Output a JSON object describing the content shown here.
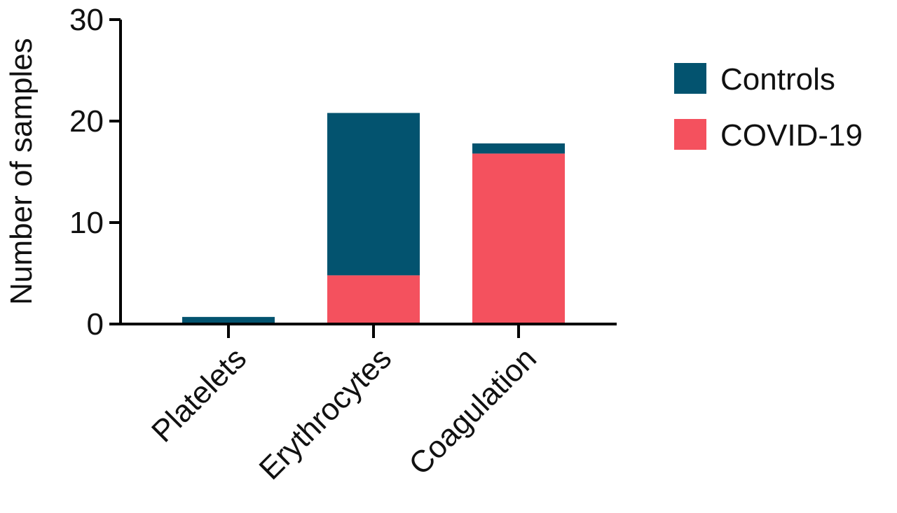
{
  "chart_data": {
    "type": "bar",
    "stacked": true,
    "title": "",
    "xlabel": "",
    "ylabel": "Number of samples",
    "ylim": [
      0,
      30
    ],
    "yticks": [
      0,
      10,
      20,
      30
    ],
    "grid": false,
    "legend_position": "top-right",
    "categories": [
      "Platelets",
      "Erythrocytes",
      "Coagulation"
    ],
    "series": [
      {
        "name": "COVID-19",
        "color": "#F4515E",
        "values": [
          0,
          4.8,
          16.8
        ]
      },
      {
        "name": "Controls",
        "color": "#03536F",
        "values": [
          0.7,
          16,
          1
        ]
      }
    ],
    "legend": [
      {
        "name": "Controls",
        "color": "#03536F"
      },
      {
        "name": "COVID-19",
        "color": "#F4515E"
      }
    ]
  }
}
